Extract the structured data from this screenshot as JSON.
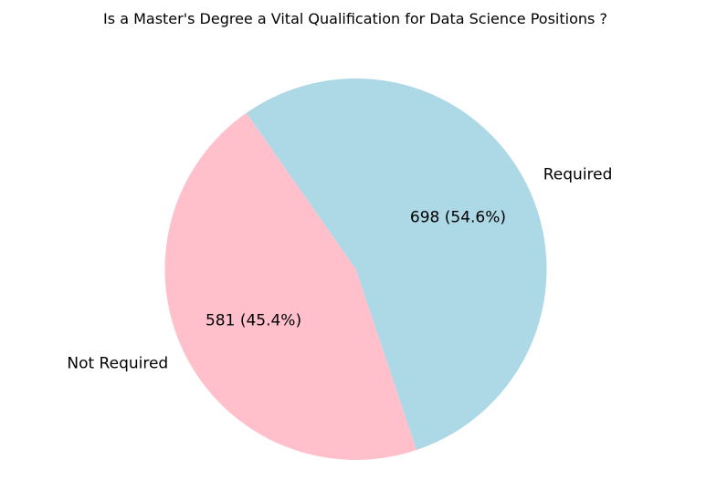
{
  "chart_data": {
    "type": "pie",
    "title": "Is a Master's Degree a Vital Qualification for Data Science Positions ?",
    "slices": [
      {
        "label": "Required",
        "value": 698,
        "percent_label": "698 (54.6%)",
        "color": "#add8e6"
      },
      {
        "label": "Not Required",
        "value": 581,
        "percent_label": "581 (45.4%)",
        "color": "#ffc0cb"
      }
    ],
    "start_angle_deg": 125,
    "direction": "counterclockwise",
    "legend": "none"
  }
}
